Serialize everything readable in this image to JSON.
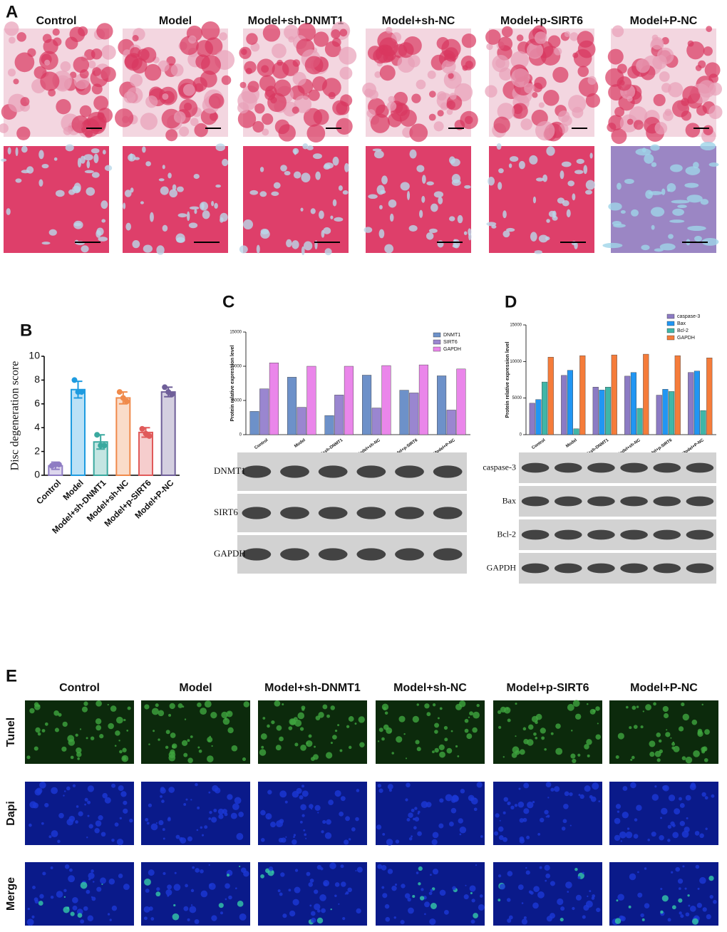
{
  "panel_a": {
    "label": "A",
    "groups": [
      "Control",
      "Model",
      "Model+sh-DNMT1",
      "Model+sh-NC",
      "Model+p-SIRT6",
      "Model+P-NC"
    ]
  },
  "panel_e": {
    "label": "E",
    "groups": [
      "Control",
      "Model",
      "Model+sh-DNMT1",
      "Model+sh-NC",
      "Model+p-SIRT6",
      "Model+P-NC"
    ],
    "rows": [
      "Tunel",
      "Dapi",
      "Merge"
    ]
  },
  "chart_data": [
    {
      "panel": "B",
      "type": "bar",
      "ylabel": "Disc degeneration score",
      "categories": [
        "Control",
        "Model",
        "Model+sh-DNMT1",
        "Model+sh-NC",
        "Model+p-SIRT6",
        "Model+P-NC"
      ],
      "values": [
        0.8,
        7.2,
        2.8,
        6.5,
        3.6,
        7.0
      ],
      "errors": [
        0.3,
        0.7,
        0.6,
        0.5,
        0.4,
        0.4
      ],
      "points": [
        [
          0.8,
          0.9,
          0.9
        ],
        [
          8.0,
          7.0,
          7.0
        ],
        [
          3.4,
          2.5,
          2.5
        ],
        [
          7.0,
          6.5,
          6.2
        ],
        [
          3.9,
          3.5,
          3.3
        ],
        [
          7.4,
          7.0,
          6.8
        ]
      ],
      "colors": [
        "#8e7cc3",
        "#1e9be0",
        "#3aa99f",
        "#f08a4b",
        "#e05a5a",
        "#6f5f99"
      ],
      "ylim": [
        0,
        10
      ],
      "yticks": [
        0,
        2,
        4,
        6,
        8,
        10
      ]
    },
    {
      "panel": "C",
      "type": "grouped_bar",
      "ylabel": "Protein relative expression level",
      "categories": [
        "Control",
        "Model",
        "Model+sh-DNMT1",
        "Model+sh-NC",
        "Model+p-SIRT6",
        "Model+P-NC"
      ],
      "series": [
        {
          "name": "DNMT1",
          "color": "#6d91c9",
          "values": [
            3400,
            8400,
            2800,
            8700,
            6500,
            8600
          ]
        },
        {
          "name": "SIRT6",
          "color": "#9a86d0",
          "values": [
            6700,
            4000,
            5800,
            3900,
            6100,
            3600
          ]
        },
        {
          "name": "GAPDH",
          "color": "#ea86ea",
          "values": [
            10500,
            10000,
            10000,
            10100,
            10200,
            9600
          ]
        }
      ],
      "ylim": [
        0,
        15000
      ],
      "yticks": [
        0,
        5000,
        10000,
        15000
      ],
      "blot_labels": [
        "DNMT1",
        "SIRT6",
        "GAPDH"
      ]
    },
    {
      "panel": "D",
      "type": "grouped_bar",
      "ylabel": "Protein relative expression level",
      "categories": [
        "Control",
        "Model",
        "Model+sh-DNMT1",
        "Model+sh-NC",
        "Model+p-SIRT6",
        "Model+P-NC"
      ],
      "series": [
        {
          "name": "caspase-3",
          "color": "#8c7bc4",
          "values": [
            4300,
            8100,
            6500,
            8000,
            5400,
            8500
          ]
        },
        {
          "name": "Bax",
          "color": "#2196f3",
          "values": [
            4800,
            8800,
            6100,
            8500,
            6200,
            8700
          ]
        },
        {
          "name": "Bcl-2",
          "color": "#3fb6a8",
          "values": [
            7200,
            800,
            6500,
            3600,
            5900,
            3300
          ]
        },
        {
          "name": "GAPDH",
          "color": "#f57c3a",
          "values": [
            10600,
            10800,
            10900,
            11000,
            10800,
            10500
          ]
        }
      ],
      "ylim": [
        0,
        15000
      ],
      "yticks": [
        0,
        5000,
        10000,
        15000
      ],
      "blot_labels": [
        "caspase-3",
        "Bax",
        "Bcl-2",
        "GAPDH"
      ]
    }
  ]
}
